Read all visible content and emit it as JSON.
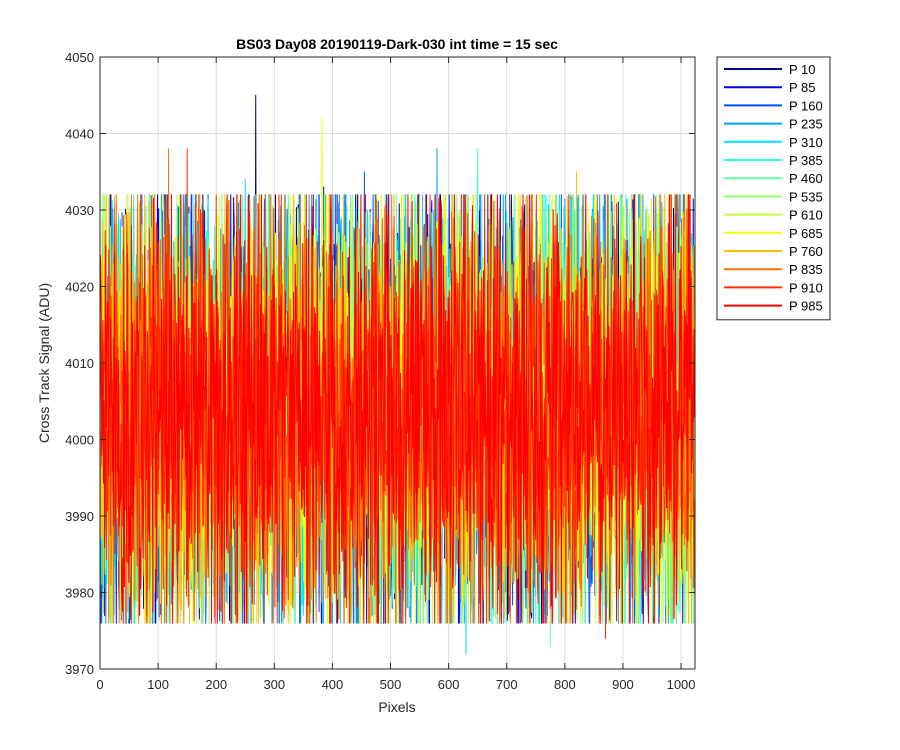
{
  "chart_data": {
    "type": "line",
    "title": "BS03 Day08 20190119-Dark-030 int time = 15 sec",
    "xlabel": "Pixels",
    "ylabel": "Cross Track Signal (ADU)",
    "xlim": [
      0,
      1024
    ],
    "ylim": [
      3970,
      4050
    ],
    "xticks": [
      0,
      100,
      200,
      300,
      400,
      500,
      600,
      700,
      800,
      900,
      1000
    ],
    "yticks": [
      3970,
      3980,
      3990,
      4000,
      4010,
      4020,
      4030,
      4040,
      4050
    ],
    "grid": true,
    "legend_position": "outside-top-right",
    "series_summary": {
      "points_per_series": 1024,
      "approx_mean": 4004,
      "approx_spread": [
        3976,
        4032
      ]
    },
    "series": [
      {
        "name": "P 10",
        "color": "#00008F",
        "peaks": [
          {
            "x": 268,
            "y": 4045
          },
          {
            "x": 8,
            "y": 3977
          }
        ]
      },
      {
        "name": "P 85",
        "color": "#0000EF",
        "peaks": [
          {
            "x": 385,
            "y": 4033
          },
          {
            "x": 120,
            "y": 3978
          }
        ]
      },
      {
        "name": "P 160",
        "color": "#0050FF",
        "peaks": [
          {
            "x": 455,
            "y": 4035
          },
          {
            "x": 860,
            "y": 3977
          }
        ]
      },
      {
        "name": "P 235",
        "color": "#00A0FF",
        "peaks": [
          {
            "x": 580,
            "y": 4038
          },
          {
            "x": 530,
            "y": 3978
          }
        ]
      },
      {
        "name": "P 310",
        "color": "#00E0FF",
        "peaks": [
          {
            "x": 250,
            "y": 4034
          },
          {
            "x": 630,
            "y": 3972
          }
        ]
      },
      {
        "name": "P 385",
        "color": "#30FFCF",
        "peaks": [
          {
            "x": 650,
            "y": 4038
          },
          {
            "x": 580,
            "y": 3980
          }
        ]
      },
      {
        "name": "P 460",
        "color": "#60FF9F",
        "peaks": [
          {
            "x": 85,
            "y": 4032
          },
          {
            "x": 775,
            "y": 3973
          }
        ]
      },
      {
        "name": "P 535",
        "color": "#90FF6F",
        "peaks": [
          {
            "x": 790,
            "y": 4030
          },
          {
            "x": 35,
            "y": 3977
          }
        ]
      },
      {
        "name": "P 610",
        "color": "#C0FF40",
        "peaks": [
          {
            "x": 670,
            "y": 4028
          },
          {
            "x": 990,
            "y": 3982
          }
        ]
      },
      {
        "name": "P 685",
        "color": "#F0FF10",
        "peaks": [
          {
            "x": 382,
            "y": 4042
          },
          {
            "x": 600,
            "y": 3979
          }
        ]
      },
      {
        "name": "P 760",
        "color": "#FFC000",
        "peaks": [
          {
            "x": 820,
            "y": 4035
          },
          {
            "x": 740,
            "y": 3979
          }
        ]
      },
      {
        "name": "P 835",
        "color": "#FF7000",
        "peaks": [
          {
            "x": 118,
            "y": 4038
          },
          {
            "x": 60,
            "y": 3979
          }
        ]
      },
      {
        "name": "P 910",
        "color": "#FF3000",
        "peaks": [
          {
            "x": 150,
            "y": 4038
          },
          {
            "x": 870,
            "y": 3974
          }
        ]
      },
      {
        "name": "P 985",
        "color": "#FF0000",
        "peaks": [
          {
            "x": 178,
            "y": 4030
          },
          {
            "x": 655,
            "y": 3976
          }
        ]
      }
    ]
  }
}
